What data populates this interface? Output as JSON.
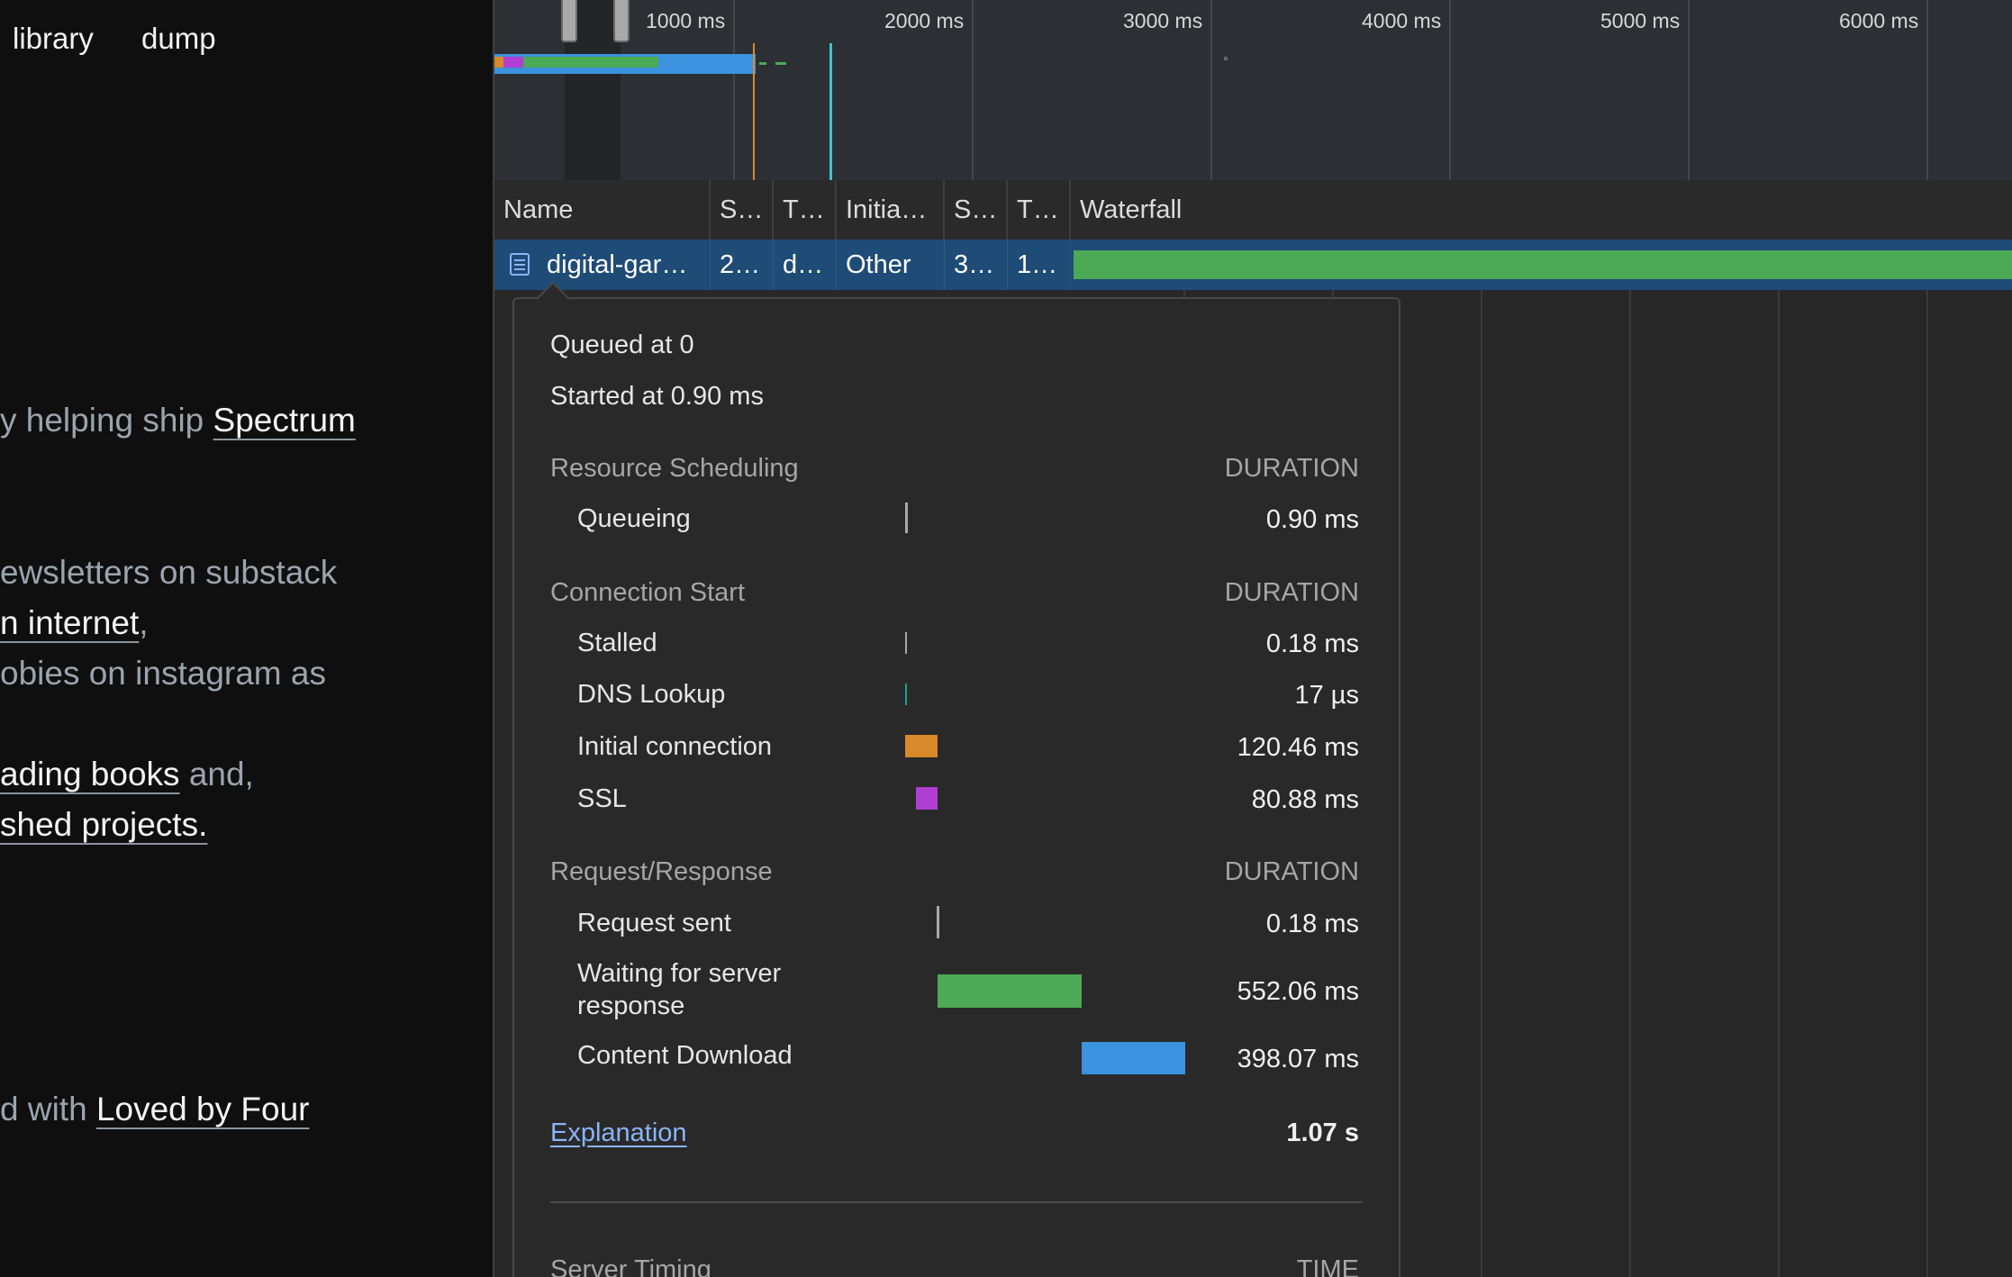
{
  "site": {
    "nav": [
      "library",
      "dump"
    ],
    "lines": [
      {
        "pre": "y helping ship ",
        "link": "Spectrum",
        "post": ""
      },
      {
        "pre": "ewsletters on substack",
        "link": "",
        "post": ""
      },
      {
        "pre": "",
        "link": "n internet",
        "post": ","
      },
      {
        "pre": "obies on instagram as",
        "link": "",
        "post": ""
      },
      {
        "pre": "",
        "link": "ading books",
        "post": " and,"
      },
      {
        "pre": "",
        "link": "shed projects.",
        "post": ""
      },
      {
        "pre": "d with ",
        "link": "Loved by Four",
        "post": ""
      }
    ]
  },
  "overview": {
    "ticks": [
      "1000 ms",
      "2000 ms",
      "3000 ms",
      "4000 ms",
      "5000 ms",
      "6000 ms"
    ]
  },
  "table": {
    "columns": [
      "Name",
      "S…",
      "T…",
      "Initia…",
      "S…",
      "T…",
      "Waterfall"
    ],
    "row": {
      "name": "digital-gar…",
      "status": "2…",
      "type": "d…",
      "initiator": "Other",
      "size": "3…",
      "time": "1…"
    }
  },
  "timing": {
    "queued_at": "Queued at 0",
    "started_at": "Started at 0.90 ms",
    "duration_label": "DURATION",
    "sections": [
      {
        "title": "Resource Scheduling",
        "rows": [
          {
            "label": "Queueing",
            "value": "0.90 ms",
            "color": "#a8a8a8"
          }
        ]
      },
      {
        "title": "Connection Start",
        "rows": [
          {
            "label": "Stalled",
            "value": "0.18 ms",
            "color": "#a8a8a8"
          },
          {
            "label": "DNS Lookup",
            "value": "17 µs",
            "color": "#1fa383"
          },
          {
            "label": "Initial connection",
            "value": "120.46 ms",
            "color": "#d8892a"
          },
          {
            "label": "SSL",
            "value": "80.88 ms",
            "color": "#b13ed3"
          }
        ]
      },
      {
        "title": "Request/Response",
        "rows": [
          {
            "label": "Request sent",
            "value": "0.18 ms",
            "color": "#a8a8a8"
          },
          {
            "label": "Waiting for server response",
            "value": "552.06 ms",
            "color": "#4ca955"
          },
          {
            "label": "Content Download",
            "value": "398.07 ms",
            "color": "#3b92de"
          }
        ]
      }
    ],
    "explanation": "Explanation",
    "total": "1.07 s",
    "server_timing": "Server Timing",
    "time_label": "TIME"
  }
}
